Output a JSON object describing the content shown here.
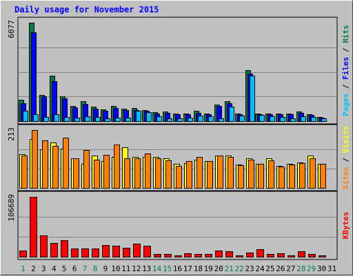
{
  "chart_data": {
    "type": "bar",
    "title": "Daily usage for November 2015",
    "categories": [
      "1",
      "2",
      "3",
      "4",
      "5",
      "6",
      "7",
      "8",
      "9",
      "10",
      "11",
      "12",
      "13",
      "14",
      "15",
      "16",
      "17",
      "18",
      "19",
      "20",
      "21",
      "22",
      "23",
      "24",
      "25",
      "26",
      "27",
      "28",
      "29",
      "30",
      "31"
    ],
    "weekend_days": [
      "1",
      "7",
      "8",
      "14",
      "15",
      "21",
      "22",
      "28",
      "29"
    ],
    "panels": [
      {
        "id": "pages-files-hits",
        "scale_label": "6077",
        "ymax": 6077,
        "right_label_parts": [
          "Pages",
          " / ",
          "Files",
          " / ",
          "Hits"
        ],
        "series": [
          {
            "name": "Hits",
            "color": "#008040",
            "values": [
              1300,
              6077,
              1600,
              2800,
              1550,
              950,
              1250,
              900,
              720,
              950,
              780,
              800,
              700,
              540,
              590,
              460,
              470,
              620,
              460,
              1000,
              1250,
              460,
              3150,
              460,
              480,
              470,
              460,
              580,
              430,
              250,
              0
            ]
          },
          {
            "name": "Files",
            "color": "#0000ff",
            "values": [
              1100,
              5500,
              1550,
              2450,
              1400,
              850,
              1050,
              780,
              650,
              820,
              700,
              700,
              620,
              480,
              530,
              420,
              420,
              500,
              410,
              930,
              1100,
              420,
              2950,
              410,
              430,
              430,
              410,
              520,
              390,
              210,
              0
            ]
          },
          {
            "name": "Pages",
            "color": "#00c0ff",
            "values": [
              650,
              430,
              240,
              440,
              240,
              210,
              280,
              260,
              180,
              210,
              200,
              640,
              540,
              280,
              190,
              190,
              200,
              330,
              280,
              170,
              880,
              320,
              2800,
              370,
              280,
              270,
              170,
              280,
              260,
              160,
              0
            ]
          }
        ]
      },
      {
        "id": "visits-sites",
        "scale_label": "213",
        "ymax": 213,
        "right_label_parts": [
          "Sites",
          " / ",
          "Visits"
        ],
        "series": [
          {
            "name": "Visits",
            "color": "#ffff00",
            "values": [
              123,
              180,
              143,
              168,
              145,
              110,
              90,
              118,
              98,
              113,
              150,
              115,
              115,
              113,
              108,
              90,
              92,
              105,
              100,
              118,
              118,
              87,
              108,
              90,
              110,
              80,
              88,
              95,
              120,
              90,
              0
            ]
          },
          {
            "name": "Sites",
            "color": "#ff8000",
            "values": [
              120,
              213,
              175,
              155,
              185,
              110,
              140,
              105,
              122,
              160,
              108,
              108,
              128,
              110,
              102,
              82,
              100,
              115,
              98,
              120,
              113,
              83,
              105,
              88,
              102,
              78,
              85,
              92,
              108,
              88,
              0
            ]
          }
        ]
      },
      {
        "id": "kbytes",
        "scale_label": "106689",
        "ymax": 106689,
        "right_label_parts": [
          "KBytes"
        ],
        "series": [
          {
            "name": "KBytes",
            "color": "#ff0000",
            "values": [
              10500,
              106689,
              37500,
              24000,
              29500,
              14500,
              14500,
              14500,
              21000,
              20000,
              16000,
              23500,
              20000,
              5500,
              4500,
              1800,
              6700,
              5500,
              4500,
              11500,
              10000,
              2700,
              7200,
              13000,
              5300,
              6400,
              1800,
              9700,
              5000,
              2700,
              0
            ]
          }
        ]
      }
    ]
  }
}
